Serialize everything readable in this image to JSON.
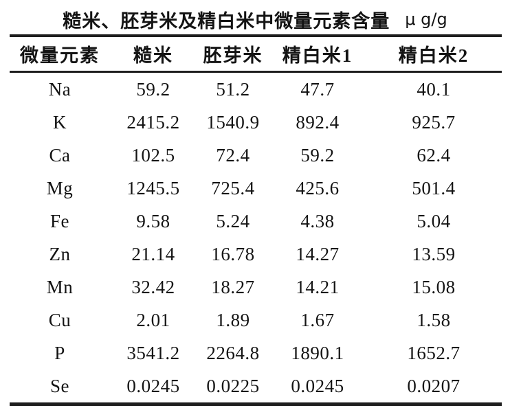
{
  "chart_data": {
    "type": "table",
    "title": "糙米、胚芽米及精白米中微量元素含量",
    "unit": "μ g/g",
    "columns": [
      "微量元素",
      "糙米",
      "胚芽米",
      "精白米1",
      "精白米2"
    ],
    "rows": [
      {
        "element": "Na",
        "values": [
          "59.2",
          "51.2",
          "47.7",
          "40.1"
        ]
      },
      {
        "element": "K",
        "values": [
          "2415.2",
          "1540.9",
          "892.4",
          "925.7"
        ]
      },
      {
        "element": "Ca",
        "values": [
          "102.5",
          "72.4",
          "59.2",
          "62.4"
        ]
      },
      {
        "element": "Mg",
        "values": [
          "1245.5",
          "725.4",
          "425.6",
          "501.4"
        ]
      },
      {
        "element": "Fe",
        "values": [
          "9.58",
          "5.24",
          "4.38",
          "5.04"
        ]
      },
      {
        "element": "Zn",
        "values": [
          "21.14",
          "16.78",
          "14.27",
          "13.59"
        ]
      },
      {
        "element": "Mn",
        "values": [
          "32.42",
          "18.27",
          "14.21",
          "15.08"
        ]
      },
      {
        "element": "Cu",
        "values": [
          "2.01",
          "1.89",
          "1.67",
          "1.58"
        ]
      },
      {
        "element": "P",
        "values": [
          "3541.2",
          "2264.8",
          "1890.1",
          "1652.7"
        ]
      },
      {
        "element": "Se",
        "values": [
          "0.0245",
          "0.0225",
          "0.0245",
          "0.0207"
        ]
      }
    ]
  }
}
